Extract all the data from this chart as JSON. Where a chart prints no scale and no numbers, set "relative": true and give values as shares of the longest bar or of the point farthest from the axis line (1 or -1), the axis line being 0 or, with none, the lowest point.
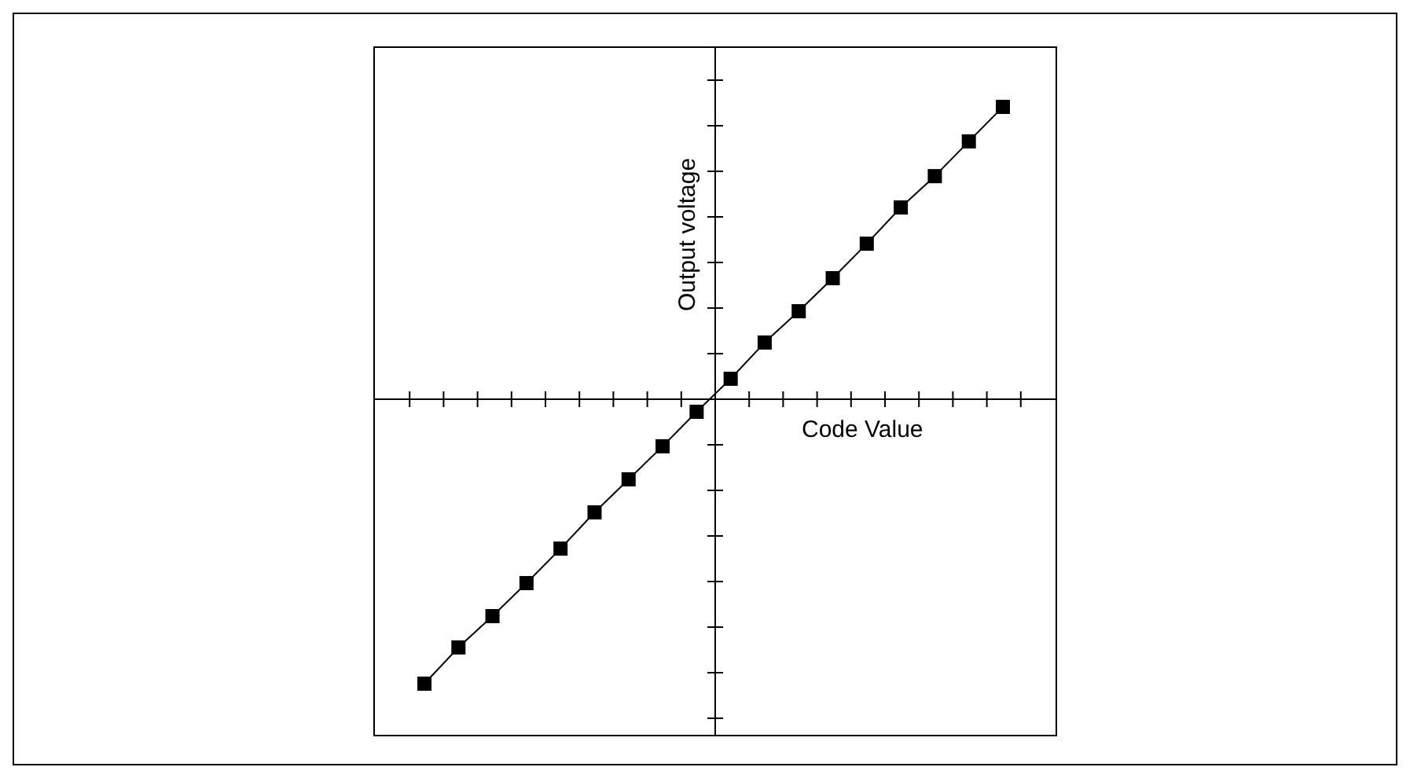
{
  "chart_data": {
    "type": "line",
    "relative": true,
    "xlabel": "Code Value",
    "ylabel": "Output voltage",
    "marker": "square",
    "line_style": "solid",
    "categories": [
      null,
      null,
      null,
      null,
      null,
      null,
      null,
      null,
      null,
      null,
      null,
      null,
      null,
      null,
      null,
      null,
      null,
      null
    ],
    "series": [
      {
        "color": "#000000",
        "values": [
          -0.973,
          -0.849,
          -0.742,
          -0.629,
          -0.511,
          -0.387,
          -0.274,
          -0.161,
          -0.043,
          0.07,
          0.194,
          0.301,
          0.414,
          0.532,
          0.656,
          0.763,
          0.882,
          1
        ]
      }
    ]
  }
}
